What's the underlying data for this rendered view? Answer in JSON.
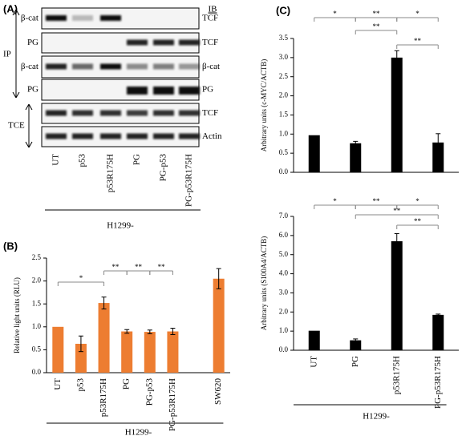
{
  "blot": {
    "panel": "(A)",
    "header": "IB",
    "left_labels": [
      "β-cat",
      "PG",
      "β-cat",
      "PG"
    ],
    "right_labels": [
      "TCF",
      "TCF",
      "β-cat",
      "PG",
      "TCF",
      "Actin"
    ],
    "groups": [
      "IP",
      "TCE"
    ],
    "lanes": [
      "UT",
      "p53",
      "p53R175H",
      "PG",
      "PG-p53",
      "PG-p53R175H"
    ],
    "xlabel": "H1299-"
  },
  "chart_data": [
    {
      "type": "bar",
      "panel": "(B)",
      "ylabel": "Relative light units (RLU)",
      "xlabel": "H1299-",
      "categories": [
        "UT",
        "p53",
        "p53R175H",
        "PG",
        "PG-p53",
        "PG-p53R175H",
        null,
        "SW620"
      ],
      "values": [
        1.0,
        0.63,
        1.52,
        0.9,
        0.89,
        0.9,
        null,
        2.05
      ],
      "errors": [
        null,
        0.17,
        0.13,
        0.04,
        0.04,
        0.07,
        null,
        0.22
      ],
      "color": "#ed7d31",
      "ylim": [
        0,
        2.5
      ],
      "yticks": [
        {
          "value": 0,
          "label": "0.0"
        },
        0.5,
        {
          "value": 1,
          "label": "1.0"
        },
        1.5,
        {
          "value": 2,
          "label": "2.0"
        },
        2.5
      ],
      "annotations": [
        "*",
        "**",
        "**",
        "**"
      ]
    },
    {
      "type": "bar",
      "panel": "(C)",
      "ylabel": "Arbitrary units (c-MYC/ACTB)",
      "categories": [
        null,
        null,
        null,
        null
      ],
      "values": [
        0.97,
        0.76,
        3.0,
        0.78
      ],
      "errors": [
        null,
        0.05,
        0.18,
        0.23
      ],
      "color": "#000000",
      "ylim": [
        0,
        3.5
      ],
      "yticks": [
        {
          "value": 0,
          "label": "0.0"
        },
        0.5,
        {
          "value": 1,
          "label": "1.0"
        },
        1.5,
        {
          "value": 2,
          "label": "2.0"
        },
        2.5,
        {
          "value": 3,
          "label": "3.0"
        },
        3.5
      ],
      "annotations": [
        "*",
        "**",
        "*",
        "**",
        "**"
      ]
    },
    {
      "type": "bar",
      "ylabel": "Arbitrary units (S100A4/ACTB)",
      "xlabel": "H1299-",
      "categories": [
        "UT",
        "PG",
        "p53R175H",
        "PG-p53R175H"
      ],
      "values": [
        1.02,
        0.52,
        5.7,
        1.85
      ],
      "errors": [
        null,
        0.07,
        0.4,
        0.04
      ],
      "color": "#000000",
      "ylim": [
        0,
        7
      ],
      "yticks": [
        {
          "value": 0,
          "label": "0.0"
        },
        {
          "value": 1,
          "label": "1.0"
        },
        {
          "value": 2,
          "label": "2.0"
        },
        {
          "value": 3,
          "label": "3.0"
        },
        {
          "value": 4,
          "label": "4.0"
        },
        {
          "value": 5,
          "label": "5.0"
        },
        {
          "value": 6,
          "label": "6.0"
        },
        {
          "value": 7,
          "label": "7.0"
        }
      ],
      "annotations": [
        "*",
        "**",
        "*",
        "**",
        "**"
      ]
    }
  ]
}
